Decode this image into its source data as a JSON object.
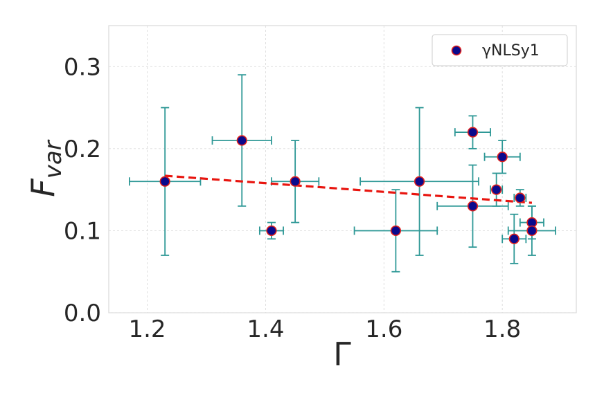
{
  "chart_data": {
    "type": "scatter",
    "title": "",
    "xlabel": "Γ",
    "ylabel_main": "F",
    "ylabel_sub": "var",
    "xlim": [
      1.135,
      1.925
    ],
    "ylim": [
      0.0,
      0.35
    ],
    "xticks": [
      1.2,
      1.4,
      1.6,
      1.8
    ],
    "xtick_labels": [
      "1.2",
      "1.4",
      "1.6",
      "1.8"
    ],
    "yticks": [
      0.0,
      0.1,
      0.2,
      0.3
    ],
    "ytick_labels": [
      "0.0",
      "0.1",
      "0.2",
      "0.3"
    ],
    "grid": true,
    "legend": {
      "label": "γNLSy1",
      "position": "top-right"
    },
    "series": [
      {
        "name": "γNLSy1",
        "marker_color": "#0a0a8c",
        "edge_color": "#e0201c",
        "errorbar_color": "#2e9896",
        "points": [
          {
            "x": 1.23,
            "y": 0.16,
            "xerr": [
              0.06,
              0.06
            ],
            "yerr": [
              0.09,
              0.09
            ]
          },
          {
            "x": 1.36,
            "y": 0.21,
            "xerr": [
              0.05,
              0.05
            ],
            "yerr": [
              0.08,
              0.08
            ]
          },
          {
            "x": 1.41,
            "y": 0.1,
            "xerr": [
              0.02,
              0.02
            ],
            "yerr": [
              0.01,
              0.01
            ]
          },
          {
            "x": 1.45,
            "y": 0.16,
            "xerr": [
              0.04,
              0.04
            ],
            "yerr": [
              0.05,
              0.05
            ]
          },
          {
            "x": 1.62,
            "y": 0.1,
            "xerr": [
              0.07,
              0.07
            ],
            "yerr": [
              0.05,
              0.05
            ]
          },
          {
            "x": 1.66,
            "y": 0.16,
            "xerr": [
              0.1,
              0.1
            ],
            "yerr": [
              0.09,
              0.09
            ]
          },
          {
            "x": 1.75,
            "y": 0.22,
            "xerr": [
              0.03,
              0.03
            ],
            "yerr": [
              0.02,
              0.02
            ]
          },
          {
            "x": 1.75,
            "y": 0.13,
            "xerr": [
              0.06,
              0.06
            ],
            "yerr": [
              0.05,
              0.05
            ]
          },
          {
            "x": 1.79,
            "y": 0.15,
            "xerr": [
              0.01,
              0.01
            ],
            "yerr": [
              0.02,
              0.02
            ]
          },
          {
            "x": 1.8,
            "y": 0.19,
            "xerr": [
              0.03,
              0.03
            ],
            "yerr": [
              0.02,
              0.02
            ]
          },
          {
            "x": 1.82,
            "y": 0.09,
            "xerr": [
              0.02,
              0.02
            ],
            "yerr": [
              0.03,
              0.03
            ]
          },
          {
            "x": 1.83,
            "y": 0.14,
            "xerr": [
              0.01,
              0.01
            ],
            "yerr": [
              0.01,
              0.01
            ]
          },
          {
            "x": 1.85,
            "y": 0.11,
            "xerr": [
              0.02,
              0.02
            ],
            "yerr": [
              0.02,
              0.02
            ]
          },
          {
            "x": 1.85,
            "y": 0.1,
            "xerr": [
              0.04,
              0.04
            ],
            "yerr": [
              0.03,
              0.03
            ]
          }
        ]
      }
    ],
    "fit_line": {
      "style": "dashed",
      "color": "#e8150f",
      "x": [
        1.23,
        1.85
      ],
      "y": [
        0.167,
        0.134
      ]
    }
  }
}
